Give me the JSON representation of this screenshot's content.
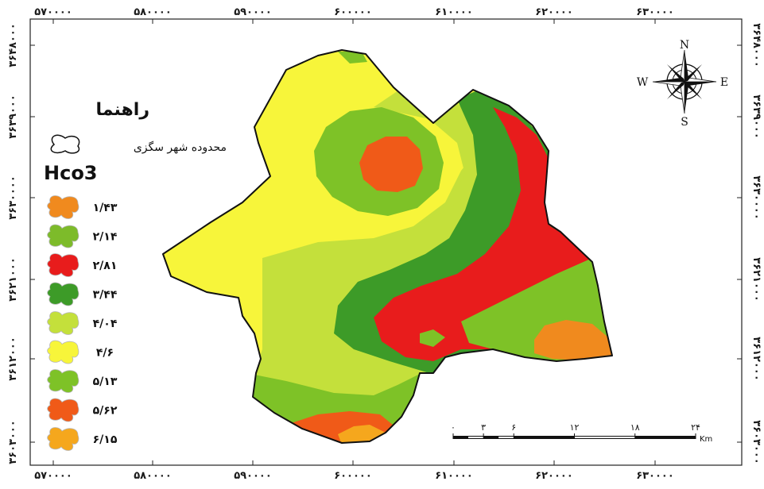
{
  "colors": {
    "c143": "#f08a1e",
    "c214": "#7dbb2a",
    "c281": "#e81c1c",
    "c344": "#3d9b28",
    "c404": "#c4e03b",
    "c46": "#f7f53a",
    "c513": "#7ec227",
    "c562": "#f05a18",
    "c615": "#f5a71d"
  },
  "axes": {
    "x_ticks": [
      "۵۷۰۰۰۰",
      "۵۸۰۰۰۰",
      "۵۹۰۰۰۰",
      "۶۰۰۰۰۰",
      "۶۱۰۰۰۰",
      "۶۲۰۰۰۰",
      "۶۳۰۰۰۰"
    ],
    "y_ticks": [
      "۳۶۴۸۰۰۰",
      "۳۶۳۹۰۰۰",
      "۳۶۳۰۰۰۰",
      "۳۶۲۱۰۰۰",
      "۳۶۱۲۰۰۰",
      "۳۶۰۳۰۰۰"
    ]
  },
  "legend": {
    "title": "راهنما",
    "boundary_label": "محدوده شهر سگزی",
    "variable": "Hco3",
    "classes": [
      {
        "label": "۱/۴۳",
        "color": "#f08a1e"
      },
      {
        "label": "۲/۱۴",
        "color": "#7dbb2a"
      },
      {
        "label": "۲/۸۱",
        "color": "#e81c1c"
      },
      {
        "label": "۳/۴۴",
        "color": "#3d9b28"
      },
      {
        "label": "۴/۰۴",
        "color": "#c4e03b"
      },
      {
        "label": "۴/۶",
        "color": "#f7f53a"
      },
      {
        "label": "۵/۱۳",
        "color": "#7ec227"
      },
      {
        "label": "۵/۶۲",
        "color": "#f05a18"
      },
      {
        "label": "۶/۱۵",
        "color": "#f5a71d"
      }
    ]
  },
  "compass": {
    "n": "N",
    "s": "S",
    "e": "E",
    "w": "W"
  },
  "scale_bar": {
    "labels": [
      "۰",
      "۳",
      "۶",
      "۱۲",
      "۱۸",
      "۲۴"
    ],
    "unit": "Km"
  }
}
